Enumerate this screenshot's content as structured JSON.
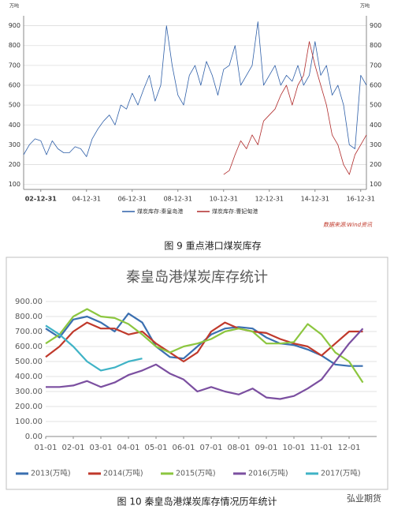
{
  "chart_data": [
    {
      "type": "line",
      "caption": "图 9  重点港口煤炭库存",
      "y_unit": "万吨",
      "source": "数据来源:Wind资讯",
      "categories": [
        null,
        null,
        null,
        "02-12-31",
        null,
        null,
        null,
        null,
        null,
        null,
        null,
        "04-12-31",
        null,
        null,
        null,
        null,
        null,
        null,
        null,
        "06-12-31",
        null,
        null,
        null,
        null,
        null,
        null,
        null,
        "08-12-31",
        null,
        null,
        null,
        null,
        null,
        null,
        null,
        "10-12-31",
        null,
        null,
        null,
        null,
        null,
        null,
        null,
        "12-12-31",
        null,
        null,
        null,
        null,
        null,
        null,
        null,
        "14-12-31",
        null,
        null,
        null,
        null,
        null,
        null,
        null,
        "16-12-31",
        null
      ],
      "ylim": [
        75,
        950
      ],
      "yticks": [
        100,
        200,
        300,
        400,
        500,
        600,
        700,
        800,
        900
      ],
      "grid": true,
      "series": [
        {
          "name": "煤炭库存:秦皇岛港",
          "color": "#2e5fa8",
          "values": [
            250,
            300,
            330,
            320,
            250,
            320,
            280,
            260,
            260,
            290,
            280,
            240,
            330,
            380,
            420,
            450,
            400,
            500,
            480,
            560,
            500,
            580,
            650,
            520,
            600,
            900,
            700,
            550,
            500,
            650,
            700,
            600,
            720,
            650,
            550,
            680,
            700,
            800,
            600,
            650,
            700,
            920,
            600,
            650,
            700,
            600,
            650,
            620,
            700,
            600,
            650,
            820,
            650,
            700,
            550,
            600,
            500,
            300,
            280,
            650,
            600
          ]
        },
        {
          "name": "煤炭库存:曹妃甸港",
          "color": "#b02a2a",
          "values": [
            null,
            null,
            null,
            null,
            null,
            null,
            null,
            null,
            null,
            null,
            null,
            null,
            null,
            null,
            null,
            null,
            null,
            null,
            null,
            null,
            null,
            null,
            null,
            null,
            null,
            null,
            null,
            null,
            null,
            null,
            null,
            null,
            null,
            null,
            null,
            150,
            170,
            250,
            320,
            280,
            350,
            300,
            420,
            450,
            480,
            550,
            600,
            500,
            600,
            650,
            820,
            700,
            600,
            500,
            350,
            300,
            200,
            150,
            250,
            300,
            350
          ]
        }
      ]
    },
    {
      "type": "line",
      "title": "秦皇岛港煤炭库存统计",
      "caption": "图 10  秦皇岛港煤炭库存情况历年统计",
      "watermark": "弘业期货",
      "categories": [
        "01-01",
        null,
        "02-01",
        null,
        "03-01",
        null,
        "04-01",
        null,
        "05-01",
        null,
        "06-01",
        null,
        "07-01",
        null,
        "08-01",
        null,
        "09-01",
        null,
        "10-01",
        null,
        "11-01",
        null,
        "12-01",
        null
      ],
      "ylim": [
        0,
        900
      ],
      "yticks": [
        {
          "value": 0,
          "label": "0.00"
        },
        {
          "value": 100,
          "label": "100.00"
        },
        {
          "value": 200,
          "label": "200.00"
        },
        {
          "value": 300,
          "label": "300.00"
        },
        {
          "value": 400,
          "label": "400.00"
        },
        {
          "value": 500,
          "label": "500.00"
        },
        {
          "value": 600,
          "label": "600.00"
        },
        {
          "value": 700,
          "label": "700.00"
        },
        {
          "value": 800,
          "label": "800.00"
        },
        {
          "value": 900,
          "label": "900.00"
        }
      ],
      "grid": true,
      "series": [
        {
          "name": "2013(万吨)",
          "color": "#3a6fb0",
          "values": [
            720,
            660,
            780,
            800,
            760,
            700,
            820,
            760,
            600,
            530,
            520,
            600,
            680,
            720,
            730,
            720,
            660,
            620,
            610,
            580,
            540,
            480,
            470,
            470
          ]
        },
        {
          "name": "2014(万吨)",
          "color": "#c0392b",
          "values": [
            530,
            600,
            700,
            760,
            720,
            720,
            680,
            700,
            620,
            560,
            500,
            560,
            700,
            760,
            720,
            700,
            690,
            650,
            620,
            600,
            540,
            620,
            700,
            700
          ]
        },
        {
          "name": "2015(万吨)",
          "color": "#8cc63f",
          "values": [
            620,
            680,
            800,
            850,
            800,
            790,
            750,
            680,
            600,
            560,
            600,
            620,
            650,
            700,
            720,
            700,
            620,
            620,
            630,
            750,
            680,
            560,
            500,
            360
          ]
        },
        {
          "name": "2016(万吨)",
          "color": "#7b4fa0",
          "values": [
            330,
            330,
            340,
            370,
            330,
            360,
            410,
            440,
            480,
            420,
            380,
            300,
            330,
            300,
            280,
            320,
            260,
            250,
            270,
            320,
            380,
            500,
            620,
            720
          ]
        },
        {
          "name": "2017(万吨)",
          "color": "#3fb3c6",
          "values": [
            740,
            680,
            600,
            500,
            440,
            460,
            500,
            520,
            null,
            null,
            null,
            null,
            null,
            null,
            null,
            null,
            null,
            null,
            null,
            null,
            null,
            null,
            null,
            null
          ]
        }
      ]
    }
  ]
}
